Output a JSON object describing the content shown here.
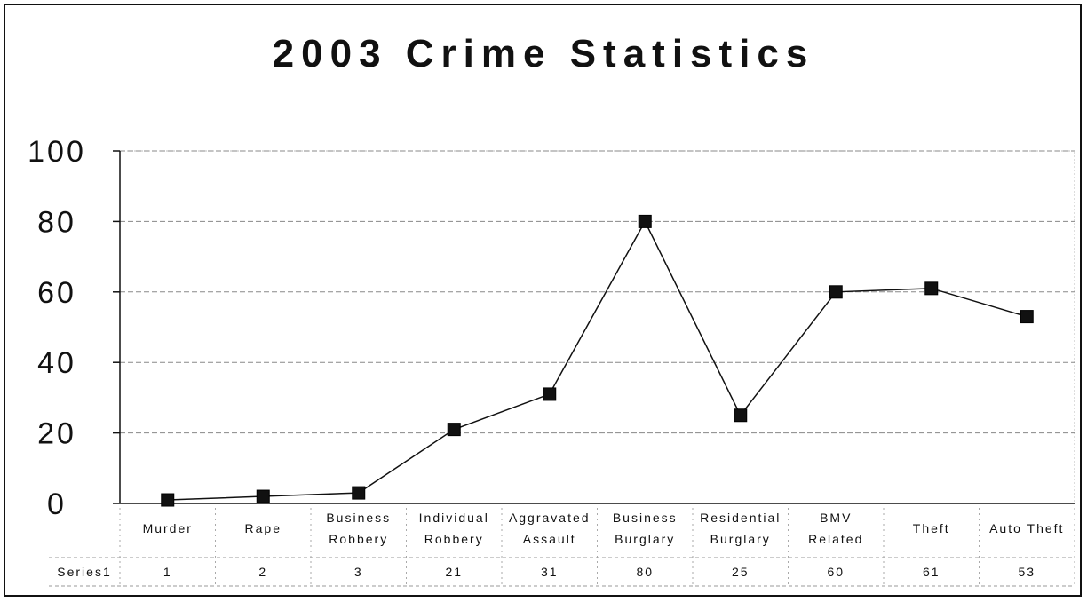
{
  "chart_data": {
    "type": "line",
    "title": "2003 Crime Statistics",
    "categories": [
      [
        "Murder"
      ],
      [
        "Rape"
      ],
      [
        "Business",
        "Robbery"
      ],
      [
        "Individual",
        "Robbery"
      ],
      [
        "Aggravated",
        "Assault"
      ],
      [
        "Business",
        "Burglary"
      ],
      [
        "Residential",
        "Burglary"
      ],
      [
        "BMV",
        "Related"
      ],
      [
        "Theft"
      ],
      [
        "Auto Theft"
      ]
    ],
    "series": [
      {
        "name": "Series1",
        "values": [
          1,
          2,
          3,
          21,
          31,
          80,
          25,
          60,
          61,
          53
        ]
      }
    ],
    "ylim": [
      0,
      100
    ],
    "yticks": [
      0,
      20,
      40,
      60,
      80,
      100
    ],
    "grid": true,
    "data_table": true,
    "colors": {
      "line": "#111111",
      "marker": "#111111",
      "grid": "#888888"
    }
  }
}
